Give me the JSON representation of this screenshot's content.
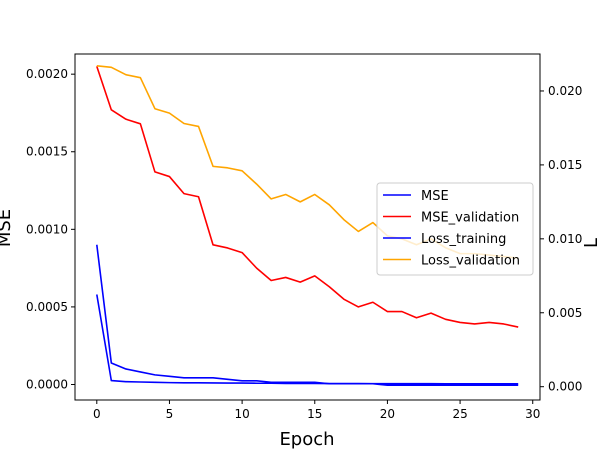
{
  "chart_data": {
    "type": "line",
    "xlabel": "Epoch",
    "ylabel_left": "MSE",
    "ylabel_right": "L",
    "x": [
      0,
      1,
      2,
      3,
      4,
      5,
      6,
      7,
      8,
      9,
      10,
      11,
      12,
      13,
      14,
      15,
      16,
      17,
      18,
      19,
      20,
      21,
      22,
      23,
      24,
      25,
      26,
      27,
      28,
      29
    ],
    "xlim": [
      -1.5,
      30.5
    ],
    "ylim_left": [
      -0.0001,
      0.00213
    ],
    "ylim_right": [
      -0.0009,
      0.0225
    ],
    "x_ticks": [
      0,
      5,
      10,
      15,
      20,
      25,
      30
    ],
    "x_tick_labels": [
      "0",
      "5",
      "10",
      "15",
      "20",
      "25",
      "30"
    ],
    "y_left_ticks": [
      0,
      0.0005,
      0.001,
      0.0015,
      0.002
    ],
    "y_left_tick_labels": [
      "0.0000",
      "0.0005",
      "0.0010",
      "0.0015",
      "0.0020"
    ],
    "y_right_ticks": [
      0,
      0.005,
      0.01,
      0.015,
      0.02
    ],
    "y_right_tick_labels": [
      "0.000",
      "0.005",
      "0.010",
      "0.015",
      "0.020"
    ],
    "legend_position": "center-right",
    "series": [
      {
        "name": "MSE",
        "axis": "left",
        "color": "#0000ff",
        "values": [
          0.00058,
          2.5e-05,
          1.8e-05,
          1.6e-05,
          1.4e-05,
          1.2e-05,
          1.1e-05,
          1.1e-05,
          1e-05,
          9e-06,
          9e-06,
          8e-06,
          8e-06,
          7e-06,
          7e-06,
          7e-06,
          6e-06,
          6e-06,
          6e-06,
          5e-06,
          5e-06,
          5e-06,
          5e-06,
          5e-06,
          4e-06,
          4e-06,
          4e-06,
          4e-06,
          4e-06,
          4e-06
        ]
      },
      {
        "name": "MSE_validation",
        "axis": "left",
        "color": "#ff0000",
        "values": [
          0.00205,
          0.00177,
          0.00171,
          0.00168,
          0.00137,
          0.00134,
          0.00123,
          0.00121,
          0.0009,
          0.00088,
          0.00085,
          0.00075,
          0.00067,
          0.00069,
          0.00066,
          0.0007,
          0.00063,
          0.00055,
          0.0005,
          0.00053,
          0.00047,
          0.00047,
          0.00043,
          0.00046,
          0.00042,
          0.0004,
          0.00039,
          0.0004,
          0.00039,
          0.00037
        ]
      },
      {
        "name": "Loss_training",
        "axis": "right",
        "color": "#0000ff",
        "values": [
          0.0096,
          0.0016,
          0.0012,
          0.001,
          0.0008,
          0.0007,
          0.0006,
          0.0006,
          0.0006,
          0.0005,
          0.0004,
          0.0004,
          0.0003,
          0.0003,
          0.0003,
          0.0003,
          0.0002,
          0.0002,
          0.0002,
          0.0002,
          0.0001,
          0.0001,
          0.0001,
          0.0001,
          0.0001,
          0.0001,
          0.0001,
          0.0001,
          0.0001,
          0.0001
        ]
      },
      {
        "name": "Loss_validation",
        "axis": "right",
        "color": "#ffa500",
        "values": [
          0.0217,
          0.0216,
          0.0211,
          0.0209,
          0.0188,
          0.0185,
          0.0178,
          0.0176,
          0.0149,
          0.0148,
          0.0146,
          0.0137,
          0.0127,
          0.013,
          0.0125,
          0.013,
          0.0123,
          0.0113,
          0.0105,
          0.0111,
          0.0102,
          0.01,
          0.0096,
          0.01,
          0.0094,
          0.009,
          0.009,
          0.0089,
          0.0088,
          0.0087
        ]
      }
    ]
  }
}
